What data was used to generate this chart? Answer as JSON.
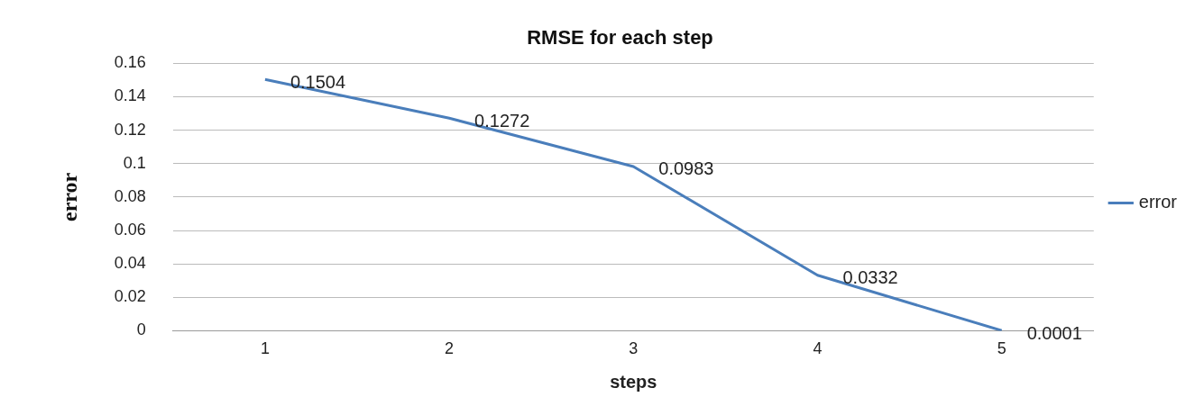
{
  "chart_data": {
    "type": "line",
    "title": "RMSE for each step",
    "xlabel": "steps",
    "ylabel": "error",
    "categories": [
      "1",
      "2",
      "3",
      "4",
      "5"
    ],
    "series": [
      {
        "name": "error",
        "color": "#4a7ebb",
        "values": [
          0.1504,
          0.1272,
          0.0983,
          0.0332,
          0.0001
        ]
      }
    ],
    "ylim": [
      0,
      0.16
    ],
    "yticks": [
      0,
      0.02,
      0.04,
      0.06,
      0.08,
      0.1,
      0.12,
      0.14,
      0.16
    ],
    "grid": "y",
    "legend": "right",
    "marker": "none",
    "line_style": "solid",
    "data_labels": true
  }
}
